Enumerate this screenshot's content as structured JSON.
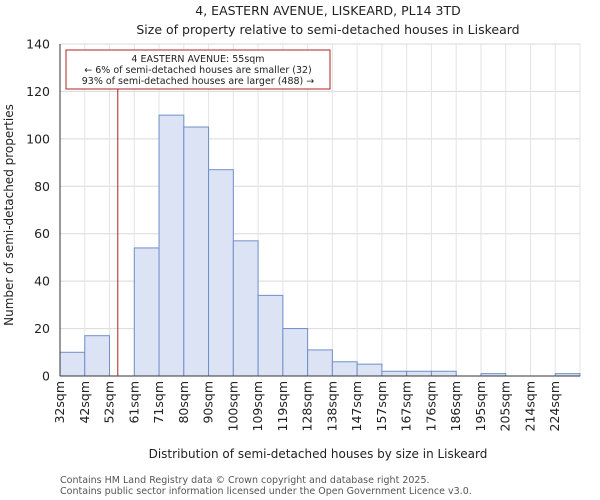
{
  "chart_data": {
    "type": "bar",
    "title": "4, EASTERN AVENUE, LISKEARD, PL14 3TD",
    "subtitle": "Size of property relative to semi-detached houses in Liskeard",
    "xlabel": "Distribution of semi-detached houses by size in Liskeard",
    "ylabel": "Number of semi-detached properties",
    "categories": [
      "32sqm",
      "42sqm",
      "52sqm",
      "61sqm",
      "71sqm",
      "80sqm",
      "90sqm",
      "100sqm",
      "109sqm",
      "119sqm",
      "128sqm",
      "138sqm",
      "147sqm",
      "157sqm",
      "167sqm",
      "176sqm",
      "186sqm",
      "195sqm",
      "205sqm",
      "214sqm",
      "224sqm"
    ],
    "values": [
      10,
      17,
      0,
      54,
      110,
      105,
      87,
      57,
      34,
      20,
      11,
      6,
      5,
      2,
      2,
      2,
      0,
      1,
      0,
      0,
      1
    ],
    "ylim": [
      0,
      140
    ],
    "yticks": [
      0,
      20,
      40,
      60,
      80,
      100,
      120,
      140
    ],
    "grid": true,
    "bar_fill": "#dbe3f5",
    "bar_edge": "#6f8fc9",
    "marker": {
      "value_sqm": 55,
      "color": "#b22222",
      "annotation": [
        "4 EASTERN AVENUE: 55sqm",
        "← 6% of semi-detached houses are smaller (32)",
        "93% of semi-detached houses are larger (488) →"
      ]
    }
  },
  "footer": {
    "line1": "Contains HM Land Registry data © Crown copyright and database right 2025.",
    "line2": "Contains public sector information licensed under the Open Government Licence v3.0."
  }
}
